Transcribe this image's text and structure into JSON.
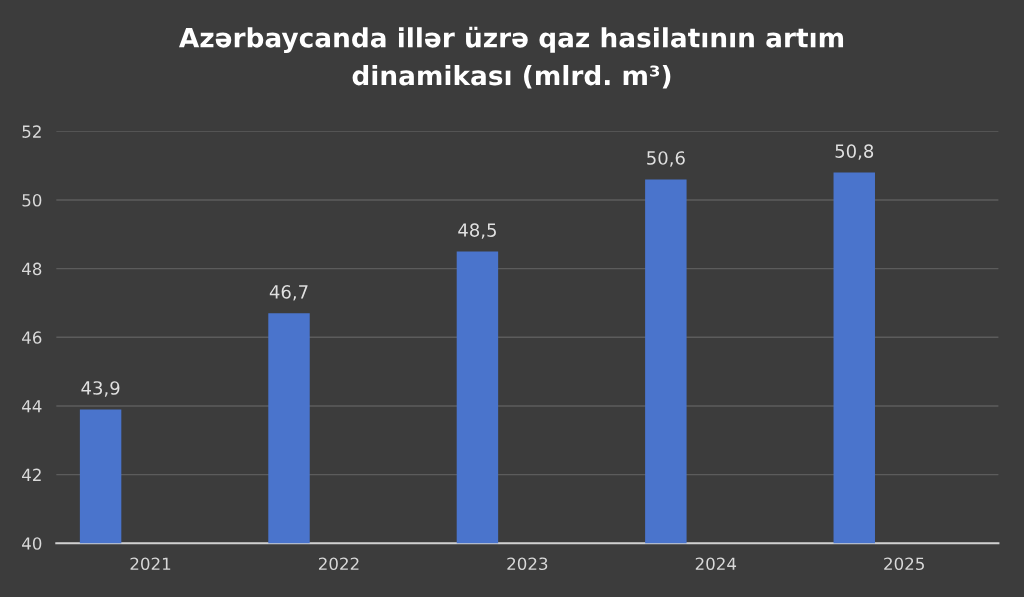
{
  "chart_data": {
    "type": "bar",
    "title": "Azərbaycanda illər üzrə qaz hasilatının artım\ndinamikası (mlrd. m³)",
    "categories": [
      "2021",
      "2022",
      "2023",
      "2024",
      "2025"
    ],
    "values": [
      43.9,
      46.7,
      48.5,
      50.6,
      50.8
    ],
    "value_labels": [
      "43,9",
      "46,7",
      "48,5",
      "50,6",
      "50,8"
    ],
    "color": "#4a74cc",
    "ylim": [
      40,
      52
    ],
    "yticks": [
      40,
      42,
      44,
      46,
      48,
      50,
      52
    ],
    "grid": "y",
    "legend": false
  }
}
